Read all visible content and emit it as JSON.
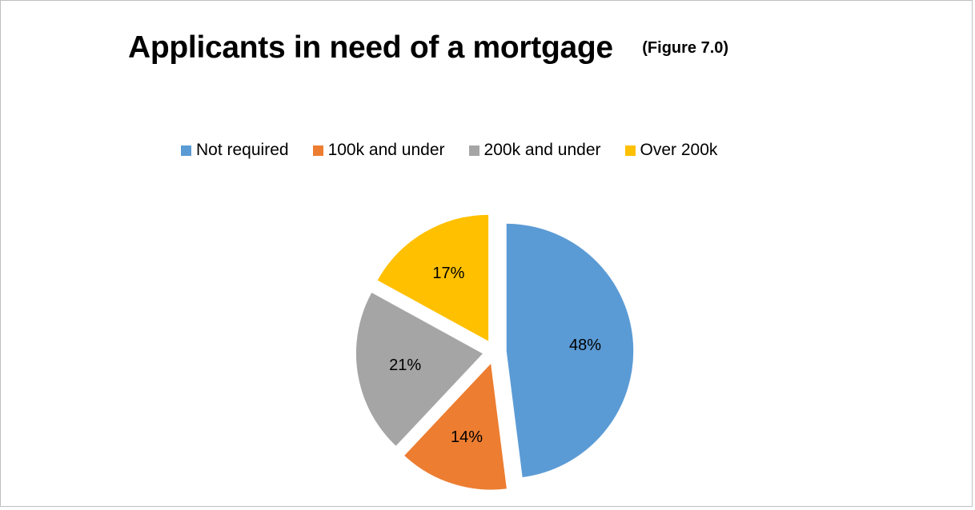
{
  "chart_data": {
    "type": "pie",
    "title": "Applicants in need of a mortgage",
    "subtitle": "(Figure 7.0)",
    "legend_position": "top",
    "slices": [
      {
        "label": "Not required",
        "value": 48,
        "value_label": "48%",
        "color": "#5B9BD5"
      },
      {
        "label": "100k and under",
        "value": 14,
        "value_label": "14%",
        "color": "#ED7D31"
      },
      {
        "label": "200k and under",
        "value": 21,
        "value_label": "21%",
        "color": "#A5A5A5"
      },
      {
        "label": "Over 200k",
        "value": 17,
        "value_label": "17%",
        "color": "#FFC000"
      }
    ]
  }
}
